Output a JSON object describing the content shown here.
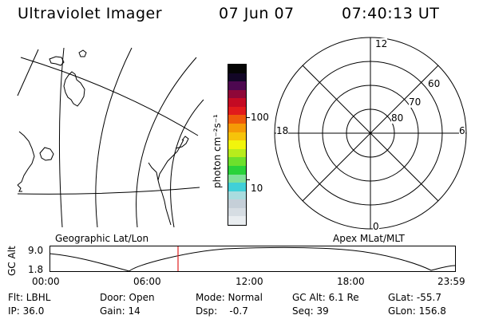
{
  "header": {
    "title": "Ultraviolet Imager",
    "date": "07 Jun 07",
    "time": "07:40:13 UT"
  },
  "colorbar": {
    "label": "photon cm⁻²s⁻¹",
    "tick_100": "100",
    "tick_10": "10",
    "colors": [
      "#e9edf0",
      "#d6dde3",
      "#c5cfd8",
      "#a9dcdf",
      "#40d0d8",
      "#7fe09a",
      "#29d23a",
      "#6de02c",
      "#b8ec1c",
      "#f2f50c",
      "#f6c30a",
      "#f59a06",
      "#ee5a0a",
      "#e11b1b",
      "#c40a23",
      "#8e0738",
      "#4d0850",
      "#120626",
      "#050505"
    ]
  },
  "geo_panel": {
    "label": "Geographic Lat/Lon"
  },
  "polar": {
    "label": "Apex MLat/MLT",
    "mlt_12": "12",
    "mlt_18": "18",
    "mlt_6": "6",
    "mlt_0": "0",
    "lat_60": "60",
    "lat_70": "70",
    "lat_80": "80"
  },
  "orbit": {
    "ylabel": "GC Alt",
    "ytick_top": "9.0",
    "ytick_bottom": "1.8",
    "xticks": [
      "00:00",
      "06:00",
      "12:00",
      "18:00",
      "23:59"
    ]
  },
  "status": {
    "filter": "Flt: LBHL",
    "door": "Door: Open",
    "mode": "Mode: Normal",
    "gc_alt": "GC Alt: 6.1 Re",
    "glat": "GLat: -55.7",
    "ip": "IP: 36.0",
    "gain": "Gain: 14",
    "dsp": "Dsp:    -0.7",
    "seq": "Seq: 39",
    "glon": "GLon: 156.8"
  }
}
